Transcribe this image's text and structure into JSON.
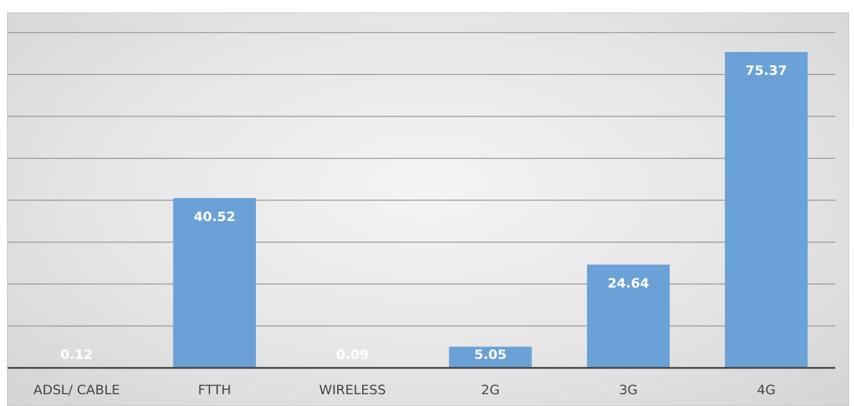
{
  "chart_data": {
    "type": "bar",
    "title": "",
    "xlabel": "",
    "ylabel": "",
    "categories": [
      "ADSL/ CABLE",
      "FTTH",
      "WIRELESS",
      "2G",
      "3G",
      "4G"
    ],
    "values": [
      0.12,
      40.52,
      0.09,
      5.05,
      24.64,
      75.37
    ],
    "data_labels": [
      "0.12",
      "40.52",
      "0.09",
      "5.05",
      "24.64",
      "75.37"
    ],
    "ylim": [
      0,
      80
    ],
    "grid": true,
    "legend": "none",
    "colors": {
      "bar": "#6aa1d6",
      "data_label": "#ffffff",
      "background": "#e6e6e6"
    }
  }
}
